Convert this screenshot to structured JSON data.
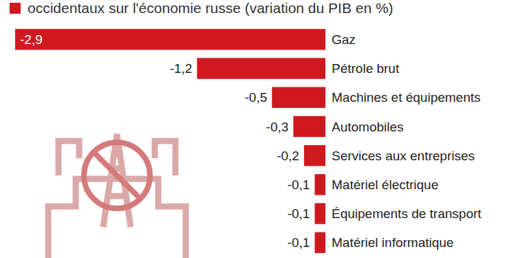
{
  "chart_data": {
    "type": "bar",
    "orientation": "horizontal",
    "title": "occidentaux sur l'économie russe (variation du PIB en %)",
    "categories": [
      "Gaz",
      "Pétrole brut",
      "Machines et équipements",
      "Automobiles",
      "Services aux entreprises",
      "Matériel électrique",
      "Équipements de transport",
      "Matériel informatique"
    ],
    "values": [
      -2.9,
      -1.2,
      -0.5,
      -0.3,
      -0.2,
      -0.1,
      -0.1,
      -0.1
    ],
    "value_labels": [
      "-2,9",
      "-1,2",
      "-0,5",
      "-0,3",
      "-0,2",
      "-0,1",
      "-0,1",
      "-0,1"
    ],
    "color": "#d0191f",
    "xlim": [
      -2.9,
      0
    ],
    "tick_labels": false,
    "data_labels": true,
    "grid": false
  }
}
